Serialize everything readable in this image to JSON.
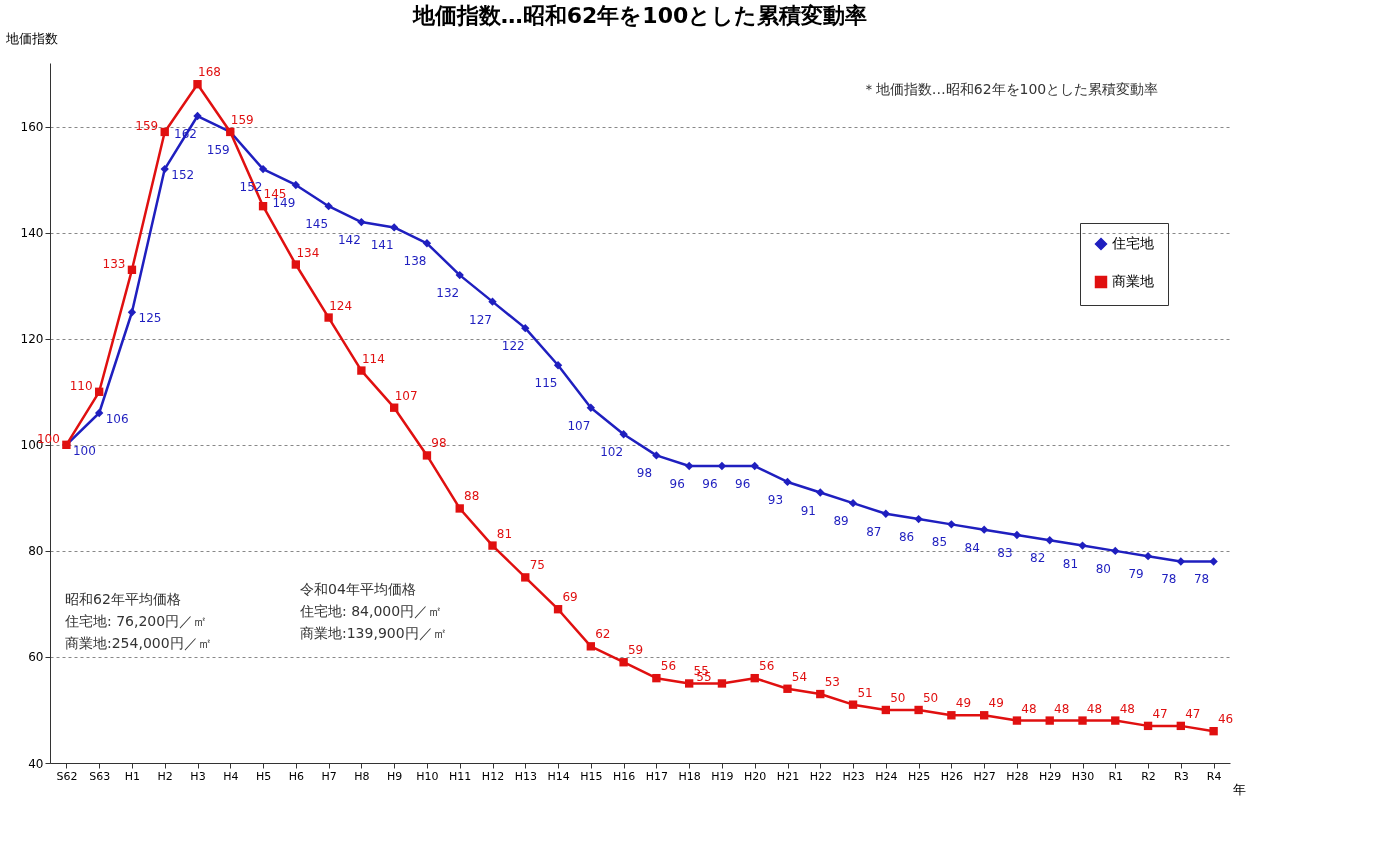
{
  "chart_data": {
    "type": "line",
    "title": "地価指数…昭和62年を100とした累積変動率",
    "ylabel": "地価指数",
    "xlabel": "年",
    "categories": [
      "S62",
      "S63",
      "H1",
      "H2",
      "H3",
      "H4",
      "H5",
      "H6",
      "H7",
      "H8",
      "H9",
      "H10",
      "H11",
      "H12",
      "H13",
      "H14",
      "H15",
      "H16",
      "H17",
      "H18",
      "H19",
      "H20",
      "H21",
      "H22",
      "H23",
      "H24",
      "H25",
      "H26",
      "H27",
      "H28",
      "H29",
      "H30",
      "R1",
      "R2",
      "R3",
      "R4"
    ],
    "series": [
      {
        "name": "住宅地",
        "color": "#1f1fbf",
        "marker": "diamond",
        "values": [
          100,
          106,
          125,
          152,
          162,
          159,
          152,
          149,
          145,
          142,
          141,
          138,
          132,
          127,
          122,
          115,
          107,
          102,
          98,
          96,
          96,
          96,
          93,
          91,
          89,
          87,
          86,
          85,
          84,
          83,
          82,
          81,
          80,
          79,
          78,
          78
        ]
      },
      {
        "name": "商業地",
        "color": "#e01010",
        "marker": "square",
        "values": [
          100,
          110,
          133,
          159,
          168,
          159,
          145,
          134,
          124,
          114,
          107,
          98,
          88,
          81,
          75,
          69,
          62,
          59,
          56,
          55,
          55,
          56,
          54,
          53,
          51,
          50,
          50,
          49,
          49,
          48,
          48,
          48,
          48,
          47,
          47,
          46
        ]
      }
    ],
    "ylim": [
      40,
      172
    ],
    "yticks": [
      40,
      60,
      80,
      100,
      120,
      140,
      160
    ],
    "grid": "y",
    "line_style": "solid",
    "legend": "top right",
    "data_labels": true,
    "annotations": [
      "＊地価指数…昭和62年を100とした累積変動率",
      "昭和62年平均価格",
      "住宅地: 76,200円／㎡",
      "商業地:254,000円／㎡",
      "令和04年平均価格",
      "住宅地: 84,000円／㎡",
      "商業地:139,900円／㎡"
    ]
  }
}
